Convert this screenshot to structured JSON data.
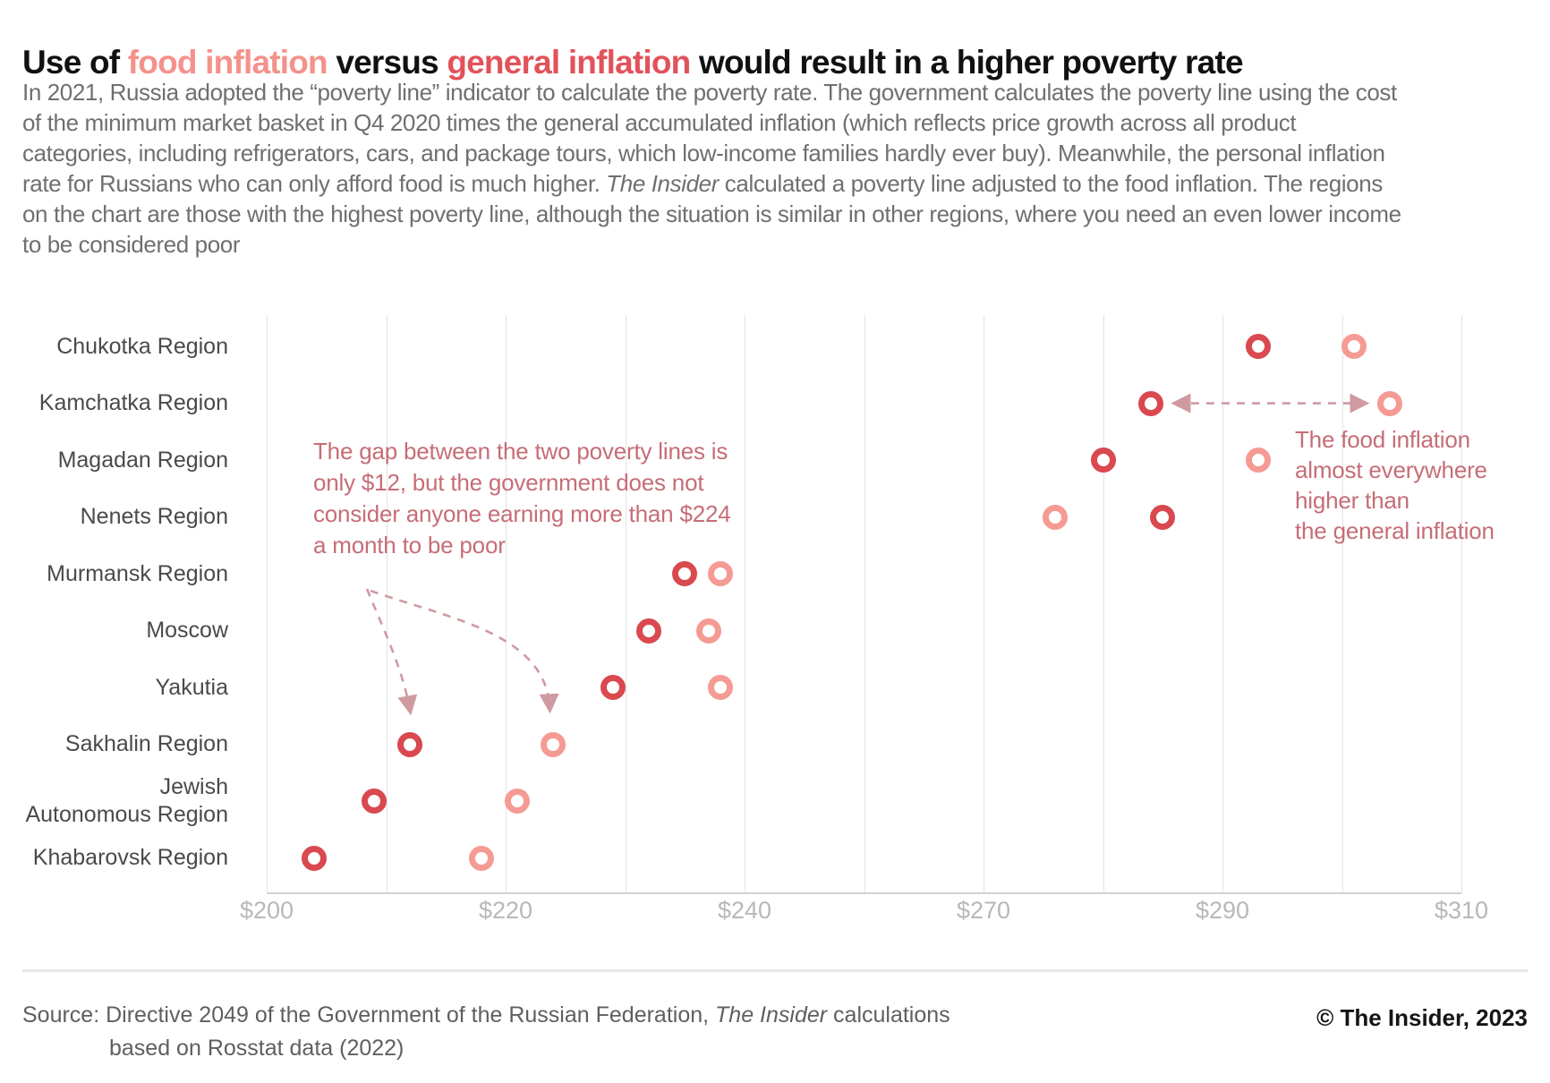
{
  "title": {
    "part1": "Use of ",
    "highlight_food": "food inflation",
    "part2": " versus ",
    "highlight_general": "general inflation",
    "part3": " would result in a higher poverty rate"
  },
  "subtitle_lines": [
    {
      "pre": "In 2021, Russia adopted the “poverty line” indicator to calculate the poverty rate. The government calculates the poverty line using the cost"
    },
    {
      "pre": "of the minimum market basket in Q4 2020 times the general accumulated inflation (which reflects price growth across all product"
    },
    {
      "pre": "categories, including refrigerators, cars, and package tours, which low-income families hardly ever buy). Meanwhile, the personal inflation"
    },
    {
      "pre": "rate for Russians who can only afford food is much higher. ",
      "italic": "The Insider",
      "post": " calculated a poverty line adjusted to the food inflation. The regions"
    },
    {
      "pre": "on the chart are those with the highest poverty line, although the situation is similar in other regions, where you need an even lower income"
    },
    {
      "pre": "to be considered poor"
    }
  ],
  "annotation_left": {
    "lines": [
      "The gap between the two poverty lines is",
      "only $12, but the government does not",
      "consider anyone earning more than $224",
      "a month to be poor"
    ]
  },
  "annotation_right": {
    "lines": [
      "The food inflation",
      "almost everywhere",
      "higher than",
      "the general inflation"
    ]
  },
  "footer": {
    "source_pre": "Source: Directive 2049 of the Government of the Russian Federation, ",
    "source_italic": "The Insider",
    "source_post": " calculations",
    "source_line2": "based on Rosstat data (2022)",
    "copyright": "© The Insider, 2023"
  },
  "colors": {
    "title_food": "#f5918b",
    "title_general": "#e2525a",
    "point_general": "#d9494f",
    "point_food": "#f59b94",
    "annotation_text": "#c66d76",
    "arrow": "#cf9aa0",
    "gridline": "#e3e3e3"
  },
  "chart_data": {
    "type": "scatter",
    "orientation": "horizontal",
    "unit": "USD per month",
    "categories": [
      "Chukotka Region",
      "Kamchatka Region",
      "Magadan Region",
      "Nenets Region",
      "Murmansk Region",
      "Moscow",
      "Yakutia",
      "Sakhalin Region",
      "Jewish\nAutonomous Region",
      "Khabarovsk Region"
    ],
    "series": [
      {
        "name": "Poverty line based on general inflation",
        "color": "#d9494f",
        "values": [
          293,
          284,
          280,
          285,
          235,
          232,
          229,
          212,
          209,
          204
        ]
      },
      {
        "name": "Poverty line adjusted to food inflation",
        "color": "#f59b94",
        "values": [
          301,
          304,
          293,
          276,
          238,
          237,
          238,
          224,
          221,
          218
        ]
      }
    ],
    "x_ticks": {
      "labels": [
        "$200",
        "$220",
        "$240",
        "$270",
        "$290",
        "$310"
      ],
      "values": [
        200,
        220,
        240,
        270,
        290,
        310
      ]
    },
    "grid": "vertical, minor line between each labeled tick",
    "legend": "none (series identified by title colors)",
    "annotations": [
      "The gap between the two poverty lines is only $12, but the government does not consider anyone earning more than $224 a month to be poor",
      "The food inflation almost everywhere higher than the general inflation"
    ]
  }
}
